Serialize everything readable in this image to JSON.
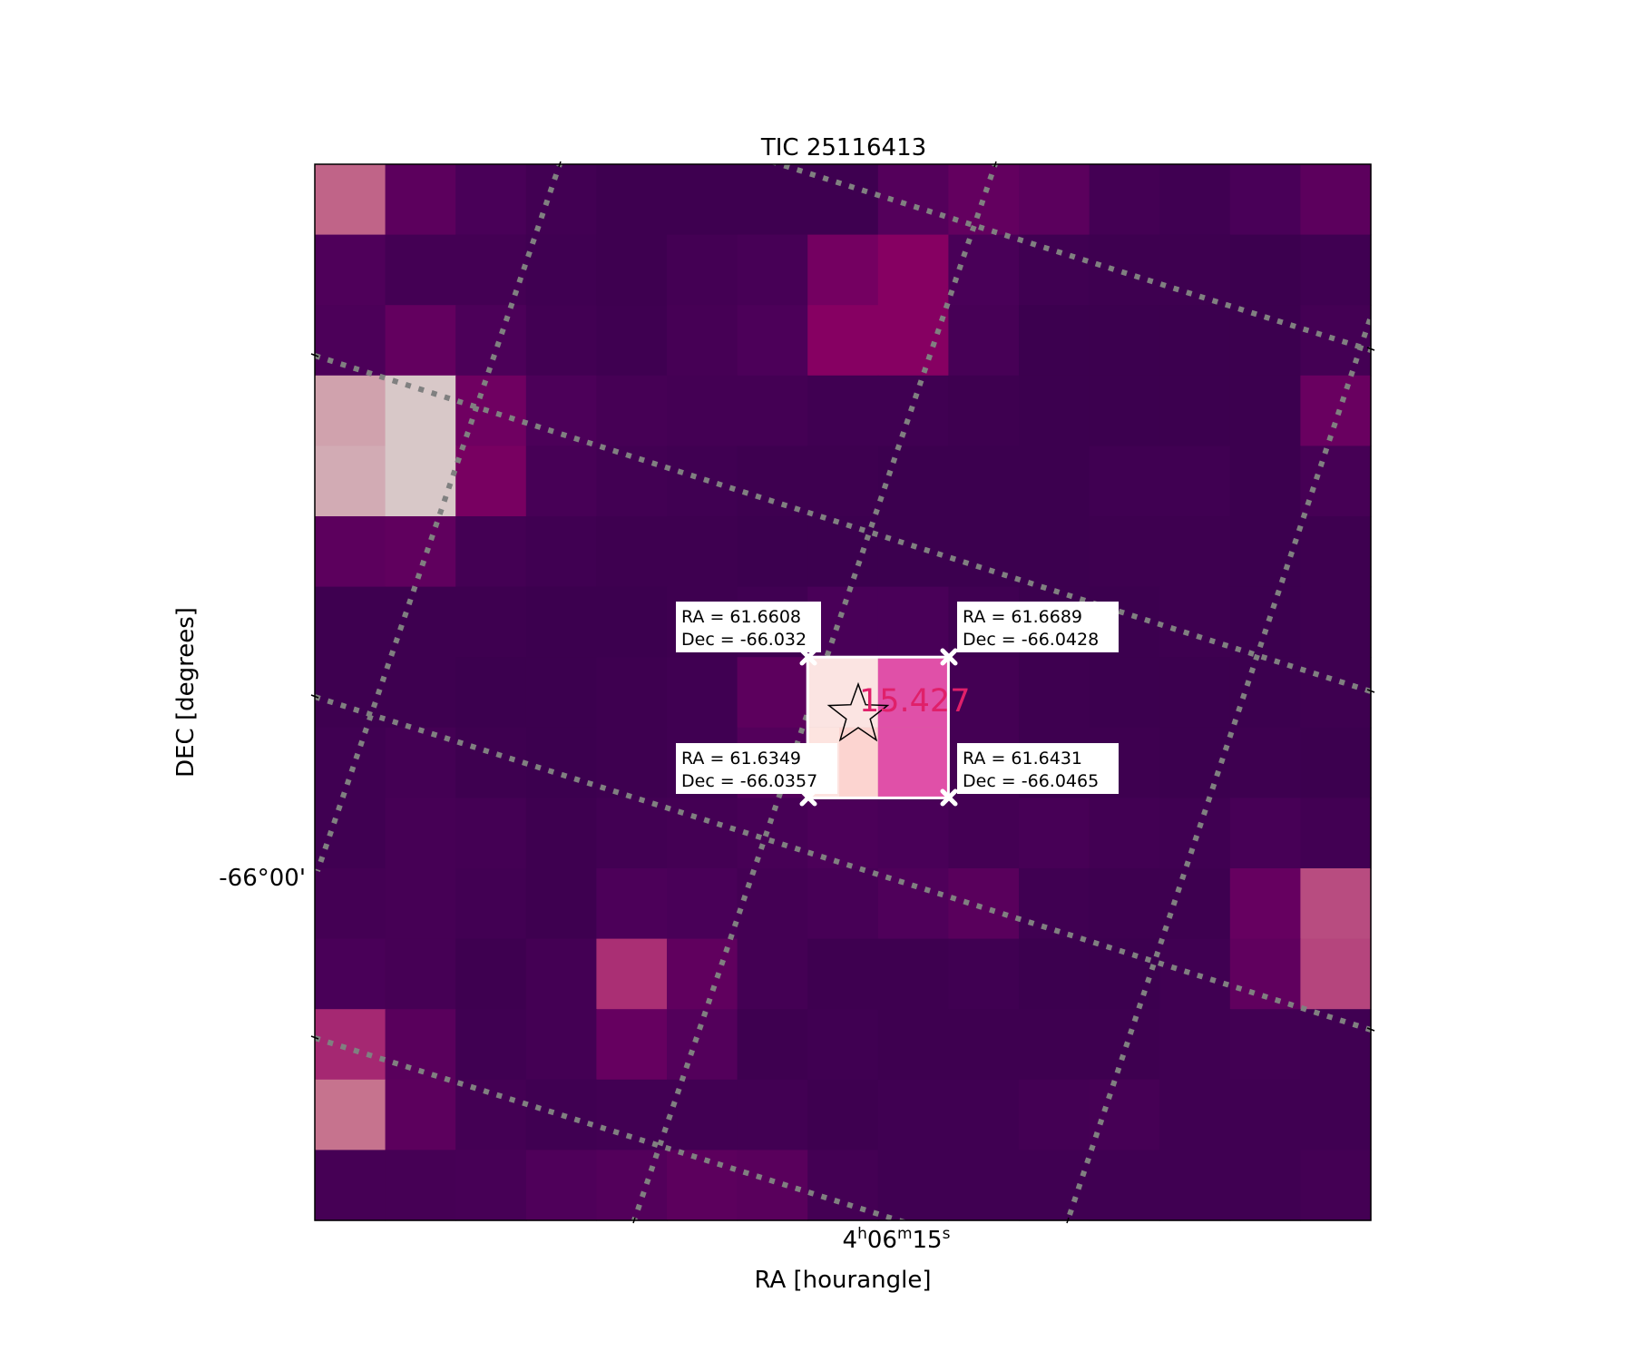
{
  "chart_data": {
    "type": "heatmap",
    "title": "TIC 25116413",
    "xlabel": "RA [hourangle]",
    "ylabel": "DEC [degrees]",
    "x_tick_label": {
      "h": "4",
      "m": "06",
      "s": "15"
    },
    "y_tick_label": "-66°00'",
    "grid": true,
    "grid_style": "dotted gray",
    "colormap": [
      "#3a004e",
      "#4a0058",
      "#650060",
      "#8a0062",
      "#b03878",
      "#c87890",
      "#d8c8c8"
    ],
    "values": [
      [
        0.78,
        0.28,
        0.16,
        0.08,
        0.04,
        0.04,
        0.04,
        0.04,
        0.23,
        0.32,
        0.27,
        0.1,
        0.06,
        0.16,
        0.28
      ],
      [
        0.2,
        0.1,
        0.1,
        0.06,
        0.04,
        0.1,
        0.14,
        0.4,
        0.48,
        0.16,
        0.06,
        0.04,
        0.04,
        0.02,
        0.06
      ],
      [
        0.18,
        0.32,
        0.18,
        0.08,
        0.05,
        0.12,
        0.18,
        0.48,
        0.48,
        0.14,
        0.02,
        0.02,
        0.02,
        0.02,
        0.1
      ],
      [
        0.92,
        1.0,
        0.38,
        0.18,
        0.12,
        0.1,
        0.1,
        0.06,
        0.06,
        0.04,
        0.02,
        0.02,
        0.02,
        0.02,
        0.35
      ],
      [
        0.94,
        1.0,
        0.42,
        0.14,
        0.08,
        0.06,
        0.04,
        0.04,
        0.02,
        0.02,
        0.02,
        0.06,
        0.06,
        0.02,
        0.12
      ],
      [
        0.28,
        0.3,
        0.1,
        0.06,
        0.04,
        0.04,
        0.02,
        0.02,
        0.02,
        0.02,
        0.02,
        0.04,
        0.04,
        0.02,
        0.04
      ],
      [
        0.04,
        0.04,
        0.04,
        0.02,
        0.02,
        0.04,
        0.06,
        0.16,
        0.16,
        0.06,
        0.02,
        0.02,
        0.04,
        0.02,
        0.04
      ],
      [
        0.04,
        0.04,
        0.02,
        0.02,
        0.04,
        0.06,
        0.28,
        1.0,
        0.82,
        0.1,
        0.04,
        0.02,
        0.02,
        0.02,
        0.04
      ],
      [
        0.06,
        0.1,
        0.04,
        0.02,
        0.04,
        0.06,
        0.22,
        0.98,
        0.82,
        0.1,
        0.04,
        0.04,
        0.02,
        0.04,
        0.02
      ],
      [
        0.06,
        0.12,
        0.1,
        0.04,
        0.08,
        0.1,
        0.14,
        0.18,
        0.16,
        0.1,
        0.14,
        0.08,
        0.06,
        0.14,
        0.08
      ],
      [
        0.1,
        0.12,
        0.08,
        0.04,
        0.18,
        0.16,
        0.1,
        0.14,
        0.2,
        0.26,
        0.06,
        0.04,
        0.04,
        0.34,
        0.72
      ],
      [
        0.16,
        0.12,
        0.04,
        0.1,
        0.64,
        0.3,
        0.1,
        0.04,
        0.04,
        0.06,
        0.02,
        0.02,
        0.06,
        0.3,
        0.7
      ],
      [
        0.62,
        0.26,
        0.06,
        0.1,
        0.34,
        0.22,
        0.04,
        0.06,
        0.04,
        0.04,
        0.04,
        0.04,
        0.06,
        0.08,
        0.06
      ],
      [
        0.82,
        0.28,
        0.1,
        0.06,
        0.08,
        0.08,
        0.08,
        0.04,
        0.06,
        0.06,
        0.1,
        0.12,
        0.06,
        0.06,
        0.06
      ],
      [
        0.12,
        0.12,
        0.14,
        0.2,
        0.22,
        0.28,
        0.26,
        0.1,
        0.06,
        0.06,
        0.06,
        0.06,
        0.06,
        0.06,
        0.1
      ]
    ],
    "aperture_label": "15.427",
    "aperture_label_color": "#e0206a",
    "aperture_corners": [
      {
        "id": "top-left",
        "line1": "RA = 61.6608",
        "line2": "Dec = -66.032"
      },
      {
        "id": "top-right",
        "line1": "RA = 61.6689",
        "line2": "Dec = -66.0428"
      },
      {
        "id": "bottom-left",
        "line1": "RA = 61.6349",
        "line2": "Dec = -66.0357"
      },
      {
        "id": "bottom-right",
        "line1": "RA = 61.6431",
        "line2": "Dec = -66.0465"
      }
    ],
    "aperture_fills": [
      [
        "#fbe4e2",
        "#e050a8"
      ],
      [
        "#fcd4d0",
        "#e050a8"
      ]
    ],
    "target_marker": "star-icon"
  }
}
